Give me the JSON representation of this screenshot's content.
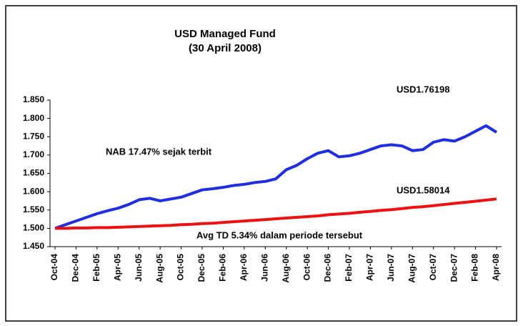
{
  "chart_data": {
    "type": "line",
    "title": [
      "USD Managed Fund",
      "(30 April 2008)"
    ],
    "annotations": [
      "USD1.76198",
      "NAB 17.47% sejak terbit",
      "USD1.58014",
      "Avg TD 5.34% dalam periode tersebut"
    ],
    "categories": [
      "Oct-04",
      null,
      "Dec-04",
      null,
      "Feb-05",
      null,
      "Apr-05",
      null,
      "Jun-05",
      null,
      "Aug-05",
      null,
      "Oct-05",
      null,
      "Dec-05",
      null,
      "Feb-06",
      null,
      "Apr-06",
      null,
      "Jun-06",
      null,
      "Aug-06",
      null,
      "Oct-06",
      null,
      "Dec-06",
      null,
      "Feb-07",
      null,
      "Apr-07",
      null,
      "Jun-07",
      null,
      "Aug-07",
      null,
      "Oct-07",
      null,
      "Dec-07",
      null,
      "Feb-08",
      null,
      "Apr-08"
    ],
    "series": [
      {
        "color": "#1f2fe0",
        "values": [
          1.5,
          1.51,
          1.52,
          1.53,
          1.54,
          1.548,
          1.555,
          1.565,
          1.578,
          1.582,
          1.575,
          1.58,
          1.585,
          1.595,
          1.605,
          1.608,
          1.612,
          1.617,
          1.62,
          1.625,
          1.628,
          1.635,
          1.66,
          1.672,
          1.69,
          1.705,
          1.712,
          1.695,
          1.698,
          1.705,
          1.715,
          1.725,
          1.728,
          1.725,
          1.712,
          1.715,
          1.735,
          1.742,
          1.738,
          1.75,
          1.765,
          1.78,
          1.76198
        ]
      },
      {
        "color": "#ee1111",
        "values": [
          1.5,
          1.5,
          1.501,
          1.501,
          1.502,
          1.502,
          1.503,
          1.504,
          1.505,
          1.506,
          1.507,
          1.508,
          1.51,
          1.511,
          1.513,
          1.514,
          1.516,
          1.518,
          1.52,
          1.522,
          1.524,
          1.526,
          1.528,
          1.53,
          1.532,
          1.534,
          1.537,
          1.539,
          1.541,
          1.544,
          1.546,
          1.549,
          1.551,
          1.554,
          1.557,
          1.559,
          1.562,
          1.565,
          1.568,
          1.571,
          1.574,
          1.577,
          1.58014
        ]
      }
    ],
    "ylim": [
      1.45,
      1.85
    ],
    "yticks": [
      {
        "value": 1.45,
        "label": "1.450"
      },
      {
        "value": 1.5,
        "label": "1.500"
      },
      {
        "value": 1.55,
        "label": "1.550"
      },
      {
        "value": 1.6,
        "label": "1.600"
      },
      {
        "value": 1.65,
        "label": "1.650"
      },
      {
        "value": 1.7,
        "label": "1.700"
      },
      {
        "value": 1.75,
        "label": "1.750"
      },
      {
        "value": 1.8,
        "label": "1.800"
      },
      {
        "value": 1.85,
        "label": "1.850"
      }
    ],
    "grid": false
  }
}
